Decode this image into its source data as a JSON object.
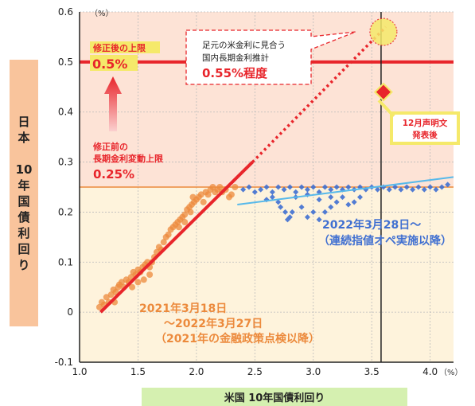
{
  "chart_data": {
    "type": "scatter",
    "title": "",
    "xlabel": "米国 10年国債利回り",
    "ylabel": "日本 10年国債利回り",
    "x_unit": "（%）",
    "y_unit": "（%）",
    "xlim": [
      1.0,
      4.2
    ],
    "ylim": [
      -0.1,
      0.6
    ],
    "x_ticks": [
      "1.0",
      "1.5",
      "2.0",
      "2.5",
      "3.0",
      "3.5",
      "4.0"
    ],
    "y_ticks": [
      "-0.1",
      "0",
      "0.1",
      "0.2",
      "0.3",
      "0.4",
      "0.5",
      "0.6"
    ],
    "grid": true,
    "series": [
      {
        "name": "2021年3月18日 ～2022年3月27日 （2021年の金融政策点検以降）",
        "color": "#ec8a3c",
        "marker": "circle",
        "points": [
          [
            1.17,
            0.01
          ],
          [
            1.19,
            0.02
          ],
          [
            1.21,
            0.015
          ],
          [
            1.23,
            0.03
          ],
          [
            1.25,
            0.02
          ],
          [
            1.27,
            0.035
          ],
          [
            1.29,
            0.045
          ],
          [
            1.31,
            0.04
          ],
          [
            1.33,
            0.05
          ],
          [
            1.34,
            0.055
          ],
          [
            1.36,
            0.06
          ],
          [
            1.38,
            0.05
          ],
          [
            1.4,
            0.065
          ],
          [
            1.42,
            0.06
          ],
          [
            1.44,
            0.07
          ],
          [
            1.46,
            0.08
          ],
          [
            1.48,
            0.075
          ],
          [
            1.5,
            0.085
          ],
          [
            1.52,
            0.08
          ],
          [
            1.54,
            0.09
          ],
          [
            1.56,
            0.095
          ],
          [
            1.58,
            0.1
          ],
          [
            1.6,
            0.09
          ],
          [
            1.62,
            0.1
          ],
          [
            1.64,
            0.11
          ],
          [
            1.6,
            0.075
          ],
          [
            1.55,
            0.065
          ],
          [
            1.5,
            0.06
          ],
          [
            1.45,
            0.05
          ],
          [
            1.3,
            0.02
          ],
          [
            1.66,
            0.12
          ],
          [
            1.68,
            0.13
          ],
          [
            1.7,
            0.125
          ],
          [
            1.72,
            0.14
          ],
          [
            1.74,
            0.15
          ],
          [
            1.76,
            0.155
          ],
          [
            1.78,
            0.165
          ],
          [
            1.8,
            0.17
          ],
          [
            1.82,
            0.175
          ],
          [
            1.84,
            0.18
          ],
          [
            1.86,
            0.185
          ],
          [
            1.88,
            0.19
          ],
          [
            1.9,
            0.195
          ],
          [
            1.92,
            0.205
          ],
          [
            1.94,
            0.21
          ],
          [
            1.96,
            0.215
          ],
          [
            1.98,
            0.22
          ],
          [
            2.0,
            0.225
          ],
          [
            2.02,
            0.23
          ],
          [
            2.04,
            0.235
          ],
          [
            2.06,
            0.22
          ],
          [
            1.95,
            0.2
          ],
          [
            1.9,
            0.18
          ],
          [
            1.85,
            0.17
          ],
          [
            1.97,
            0.23
          ],
          [
            2.08,
            0.24
          ],
          [
            2.1,
            0.235
          ],
          [
            2.12,
            0.245
          ],
          [
            2.14,
            0.25
          ],
          [
            2.16,
            0.24
          ],
          [
            2.18,
            0.245
          ],
          [
            2.2,
            0.25
          ],
          [
            2.22,
            0.24
          ],
          [
            2.25,
            0.245
          ],
          [
            2.28,
            0.23
          ],
          [
            2.3,
            0.235
          ],
          [
            2.33,
            0.25
          ]
        ]
      },
      {
        "name": "2022年3月28日～ （連続指値オペ実施以降）",
        "color": "#3f6fd1",
        "marker": "diamond",
        "points": [
          [
            2.4,
            0.245
          ],
          [
            2.45,
            0.25
          ],
          [
            2.5,
            0.24
          ],
          [
            2.55,
            0.245
          ],
          [
            2.6,
            0.25
          ],
          [
            2.65,
            0.24
          ],
          [
            2.7,
            0.25
          ],
          [
            2.75,
            0.245
          ],
          [
            2.8,
            0.25
          ],
          [
            2.85,
            0.24
          ],
          [
            2.9,
            0.25
          ],
          [
            2.95,
            0.245
          ],
          [
            3.0,
            0.25
          ],
          [
            3.05,
            0.24
          ],
          [
            3.1,
            0.25
          ],
          [
            3.15,
            0.245
          ],
          [
            3.2,
            0.25
          ],
          [
            3.25,
            0.245
          ],
          [
            3.3,
            0.25
          ],
          [
            3.35,
            0.245
          ],
          [
            3.4,
            0.25
          ],
          [
            3.45,
            0.245
          ],
          [
            3.5,
            0.25
          ],
          [
            3.55,
            0.245
          ],
          [
            3.6,
            0.25
          ],
          [
            3.65,
            0.245
          ],
          [
            3.7,
            0.25
          ],
          [
            3.75,
            0.245
          ],
          [
            3.8,
            0.25
          ],
          [
            3.85,
            0.245
          ],
          [
            3.9,
            0.25
          ],
          [
            3.95,
            0.245
          ],
          [
            4.0,
            0.25
          ],
          [
            4.05,
            0.245
          ],
          [
            4.1,
            0.25
          ],
          [
            4.15,
            0.255
          ],
          [
            2.72,
            0.21
          ],
          [
            2.76,
            0.2
          ],
          [
            2.8,
            0.19
          ],
          [
            2.78,
            0.185
          ],
          [
            2.82,
            0.2
          ],
          [
            2.9,
            0.21
          ],
          [
            2.95,
            0.19
          ],
          [
            3.0,
            0.2
          ],
          [
            3.05,
            0.185
          ],
          [
            3.1,
            0.2
          ],
          [
            3.15,
            0.21
          ],
          [
            3.2,
            0.22
          ],
          [
            3.25,
            0.23
          ],
          [
            3.3,
            0.215
          ],
          [
            3.35,
            0.22
          ],
          [
            3.4,
            0.23
          ],
          [
            2.6,
            0.225
          ],
          [
            2.65,
            0.23
          ],
          [
            2.7,
            0.22
          ],
          [
            2.85,
            0.23
          ],
          [
            2.95,
            0.235
          ],
          [
            3.05,
            0.225
          ],
          [
            3.15,
            0.23
          ]
        ]
      }
    ],
    "trend_lines": [
      {
        "name": "orange_fit",
        "color": "#e8252b",
        "from": [
          1.18,
          0.0
        ],
        "to": [
          2.48,
          0.3
        ],
        "style": "solid"
      },
      {
        "name": "orange_fit_extension",
        "color": "#e8252b",
        "from": [
          2.48,
          0.3
        ],
        "to": [
          3.62,
          0.57
        ],
        "style": "dotted"
      },
      {
        "name": "blue_fit",
        "color": "#58b9ea",
        "from": [
          2.35,
          0.215
        ],
        "to": [
          4.2,
          0.27
        ],
        "style": "solid"
      }
    ],
    "reference_lines": {
      "upper_limit_after": 0.5,
      "upper_limit_before": 0.25,
      "vertical_x": 3.58
    },
    "highlight_points": [
      {
        "name": "estimate",
        "x": 3.6,
        "y": 0.56,
        "color": "#f5e96a"
      },
      {
        "name": "after_statement",
        "x": 3.6,
        "y": 0.44,
        "color": "#e8252b"
      }
    ]
  },
  "annotations": {
    "after_limit_label": "修正後の上限",
    "after_limit_value": "0.5%",
    "before_limit_line1": "修正前の",
    "before_limit_line2": "長期金利変動上限",
    "before_limit_value": "0.25%",
    "estimate_line1": "足元の米金利に見合う",
    "estimate_line2": "国内長期金利推計",
    "estimate_value": "0.55%程度",
    "statement_line1": "12月声明文",
    "statement_line2": "発表後",
    "orange_legend_line1": "2021年3月18日",
    "orange_legend_line2": "～2022年3月27日",
    "orange_legend_line3": "（2021年の金融政策点検以降）",
    "blue_legend_line1": "2022年3月28日～",
    "blue_legend_line2": "（連続指値オペ実施以降）"
  },
  "colors": {
    "background_upper": "#fde3d6",
    "background_lower": "#fef3dc",
    "ylabel_box": "#f9c49c",
    "xlabel_box": "#d5f0b0",
    "red": "#e8252b",
    "orange": "#ec8a3c",
    "blue": "#3f6fd1"
  }
}
